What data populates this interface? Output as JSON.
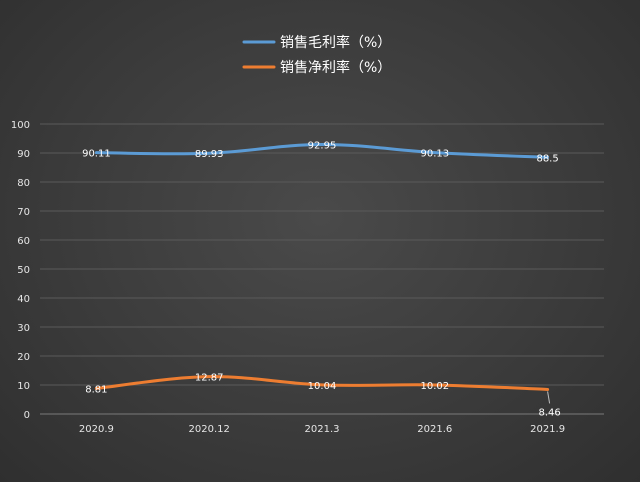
{
  "chart_data": {
    "type": "line",
    "categories": [
      "2020.9",
      "2020.12",
      "2021.3",
      "2021.6",
      "2021.9"
    ],
    "series": [
      {
        "name": "销售毛利率（%）",
        "values": [
          90.11,
          89.93,
          92.95,
          90.13,
          88.5
        ],
        "labels": [
          "90.11",
          "89.93",
          "92.95",
          "90.13",
          "88.5"
        ],
        "color": "#5b9bd5"
      },
      {
        "name": "销售净利率（%）",
        "values": [
          8.81,
          12.87,
          10.04,
          10.02,
          8.46
        ],
        "labels": [
          "8.81",
          "12.87",
          "10.04",
          "10.02",
          "8.46"
        ],
        "color": "#ed7d31"
      }
    ],
    "ylim": [
      0,
      100
    ],
    "yticks": [
      "0",
      "10",
      "20",
      "30",
      "40",
      "50",
      "60",
      "70",
      "80",
      "90",
      "100"
    ],
    "grid": true,
    "legend": "top-center"
  }
}
